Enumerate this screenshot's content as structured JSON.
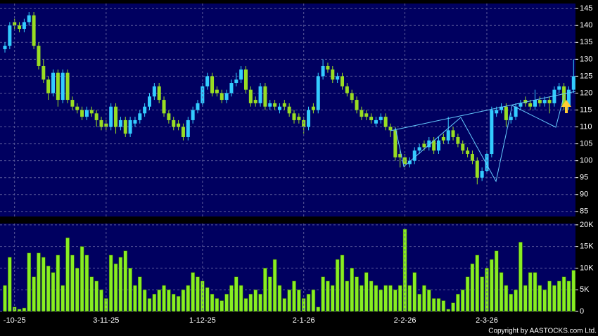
{
  "chart_data": [
    {
      "type": "candlestick",
      "open": [
        133,
        134,
        141,
        140,
        139,
        141,
        143,
        134,
        128,
        124,
        120,
        126,
        118,
        126,
        118,
        116,
        115,
        113,
        115,
        114,
        112,
        111,
        110,
        116,
        110,
        112,
        108,
        111,
        112,
        114,
        116,
        119,
        122,
        118,
        114,
        112,
        111,
        110,
        107,
        112,
        115,
        117,
        122,
        125,
        121,
        120,
        118,
        120,
        123,
        124,
        127,
        121,
        118,
        117,
        122,
        116,
        117,
        115,
        117,
        116,
        114,
        113,
        112,
        110,
        116,
        115,
        125,
        128,
        127,
        124,
        125,
        122,
        120,
        118,
        115,
        114,
        113,
        111,
        112,
        113,
        110,
        109,
        102,
        101,
        99,
        100,
        103,
        105,
        104,
        106,
        103,
        107,
        106,
        109,
        107,
        105,
        103,
        102,
        100,
        95,
        97,
        102,
        114,
        115,
        116,
        112,
        113,
        116,
        118,
        117,
        116,
        118,
        117,
        118,
        117,
        121,
        122,
        116,
        121
      ],
      "high": [
        135,
        141,
        142,
        141,
        142,
        144,
        144,
        135,
        130,
        125,
        127,
        127,
        127,
        127,
        119,
        117,
        116,
        116,
        116,
        115,
        113,
        112,
        117,
        117,
        113,
        113,
        113,
        113,
        115,
        117,
        120,
        123,
        123,
        119,
        115,
        113,
        112,
        111,
        113,
        116,
        118,
        123,
        126,
        126,
        122,
        121,
        121,
        124,
        126,
        128,
        128,
        122,
        119,
        123,
        123,
        118,
        118,
        117,
        118,
        117,
        115,
        114,
        113,
        116,
        117,
        126,
        130,
        129,
        128,
        126,
        126,
        123,
        121,
        119,
        116,
        115,
        114,
        113,
        114,
        114,
        111,
        110,
        103,
        102,
        101,
        104,
        105,
        106,
        107,
        107,
        107,
        108,
        113,
        110,
        108,
        106,
        104,
        103,
        101,
        98,
        103,
        116,
        116,
        117,
        117,
        114,
        117,
        118,
        119,
        118,
        121,
        119,
        119,
        119,
        122,
        123,
        123,
        122,
        130
      ],
      "low": [
        132,
        133,
        139,
        138,
        138,
        140,
        133,
        127,
        123,
        118,
        119,
        116,
        117,
        117,
        115,
        114,
        112,
        112,
        113,
        110,
        109,
        109,
        109,
        108,
        109,
        107,
        107,
        110,
        111,
        113,
        115,
        118,
        117,
        113,
        111,
        109,
        109,
        106,
        106,
        111,
        114,
        116,
        121,
        119,
        119,
        117,
        117,
        119,
        122,
        123,
        120,
        116,
        116,
        116,
        115,
        115,
        115,
        114,
        115,
        113,
        111,
        111,
        108,
        109,
        114,
        114,
        124,
        126,
        123,
        123,
        121,
        119,
        117,
        114,
        112,
        112,
        111,
        110,
        111,
        109,
        107,
        100,
        98,
        98,
        98,
        99,
        102,
        103,
        103,
        102,
        102,
        105,
        105,
        106,
        104,
        102,
        101,
        99,
        93,
        94,
        96,
        101,
        113,
        114,
        110,
        111,
        112,
        115,
        116,
        115,
        115,
        116,
        116,
        114,
        116,
        120,
        115,
        115,
        120
      ],
      "close": [
        134,
        140,
        140,
        139,
        141,
        143,
        134,
        128,
        124,
        120,
        126,
        118,
        126,
        118,
        116,
        115,
        113,
        115,
        114,
        112,
        110,
        110,
        116,
        110,
        112,
        108,
        112,
        112,
        114,
        116,
        119,
        122,
        118,
        114,
        112,
        110,
        110,
        107,
        112,
        115,
        117,
        122,
        125,
        120,
        120,
        118,
        120,
        123,
        124,
        127,
        121,
        117,
        117,
        122,
        116,
        117,
        116,
        116,
        116,
        114,
        112,
        112,
        110,
        115,
        115,
        125,
        128,
        127,
        124,
        125,
        122,
        120,
        118,
        115,
        113,
        113,
        112,
        112,
        113,
        110,
        109,
        101,
        101,
        99,
        100,
        103,
        104,
        104,
        106,
        103,
        106,
        106,
        109,
        107,
        105,
        103,
        102,
        100,
        95,
        97,
        102,
        115,
        115,
        116,
        112,
        113,
        116,
        117,
        117,
        116,
        118,
        117,
        118,
        117,
        121,
        122,
        116,
        121,
        125
      ],
      "up_color": "#33ccff",
      "down_color": "#99dd22",
      "ylim": [
        83.5,
        146.5
      ],
      "yticks": [
        85,
        90,
        95,
        100,
        105,
        110,
        115,
        120,
        125,
        130,
        135,
        140,
        145
      ],
      "grid": true
    },
    {
      "type": "bar",
      "categories": [
        null,
        null,
        "-10-25",
        null,
        null,
        null,
        null,
        null,
        null,
        null,
        null,
        null,
        null,
        null,
        null,
        null,
        null,
        null,
        null,
        null,
        null,
        "3-11-25",
        null,
        null,
        null,
        null,
        null,
        null,
        null,
        null,
        null,
        null,
        null,
        null,
        null,
        null,
        null,
        null,
        null,
        null,
        null,
        "1-12-25",
        null,
        null,
        null,
        null,
        null,
        null,
        null,
        null,
        null,
        null,
        null,
        null,
        null,
        null,
        null,
        null,
        null,
        null,
        null,
        null,
        "2-1-26",
        null,
        null,
        null,
        null,
        null,
        null,
        null,
        null,
        null,
        null,
        null,
        null,
        null,
        null,
        null,
        null,
        null,
        null,
        null,
        null,
        "2-2-26",
        null,
        null,
        null,
        null,
        null,
        null,
        null,
        null,
        null,
        null,
        null,
        null,
        null,
        null,
        null,
        null,
        "2-3-26",
        null,
        null,
        null,
        null,
        null,
        null,
        null,
        null,
        null,
        null,
        null,
        null,
        null,
        null,
        null,
        null,
        null,
        null
      ],
      "values": [
        6000,
        12500,
        1000,
        500,
        800,
        13500,
        8000,
        13500,
        12500,
        10500,
        9000,
        13000,
        6000,
        17000,
        13000,
        10000,
        15000,
        13000,
        8000,
        7000,
        5000,
        3000,
        13000,
        11000,
        12500,
        14000,
        10000,
        6000,
        8000,
        5000,
        3000,
        4000,
        5000,
        6000,
        5000,
        4000,
        3500,
        5000,
        6000,
        9000,
        8000,
        7000,
        5500,
        4000,
        3000,
        2500,
        4000,
        6000,
        8000,
        6000,
        3000,
        4000,
        5000,
        4000,
        10000,
        8000,
        12000,
        6000,
        3000,
        5000,
        7000,
        5000,
        3000,
        4000,
        5000,
        1000,
        8000,
        7000,
        6000,
        12000,
        13000,
        7000,
        10000,
        8000,
        6000,
        9000,
        7000,
        6000,
        5000,
        6000,
        6000,
        5000,
        6000,
        19000,
        6000,
        9000,
        4000,
        6000,
        5000,
        3000,
        3000,
        2500,
        500,
        2000,
        4000,
        5000,
        8000,
        11000,
        13000,
        8000,
        10000,
        12000,
        14000,
        9000,
        6000,
        4000,
        5000,
        16000,
        6000,
        9000,
        9000,
        6000,
        5000,
        7000,
        6000,
        7000,
        8000,
        7000,
        9500
      ],
      "color": "#88ee22",
      "ylim": [
        0,
        20300
      ],
      "yticks": [
        0,
        {
          "value": 5000,
          "label": "5K"
        },
        {
          "value": 10000,
          "label": "10K"
        },
        {
          "value": 15000,
          "label": "15K"
        },
        {
          "value": 20000,
          "label": "20K"
        }
      ],
      "grid": true
    }
  ],
  "footer": "Copyright by AASTOCKS.com Ltd."
}
